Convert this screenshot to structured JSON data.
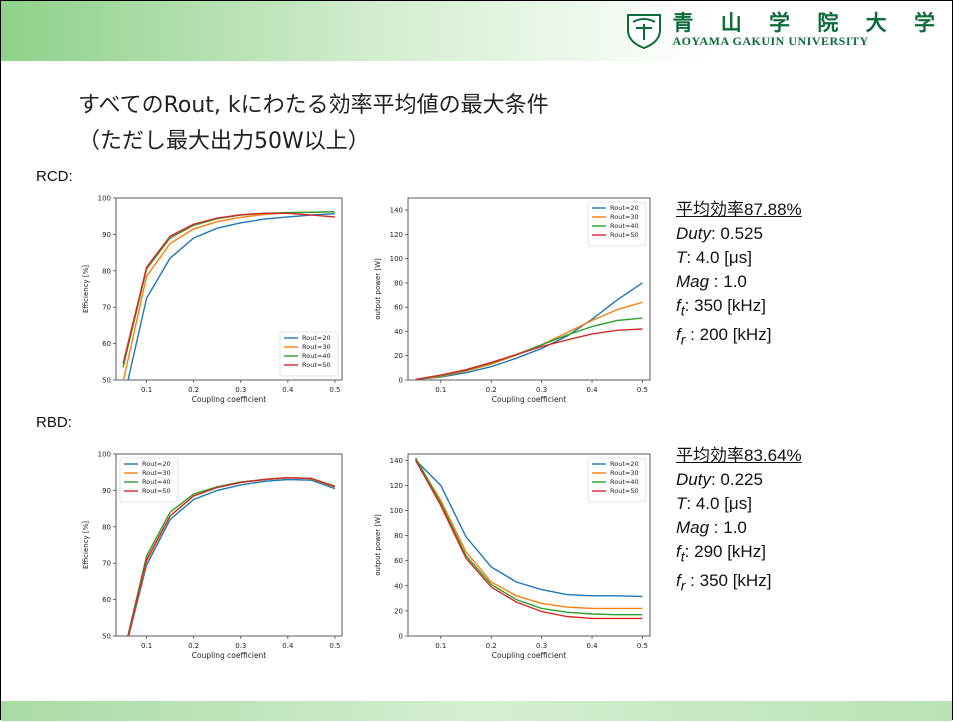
{
  "header": {
    "logo_jp": "青 山 学 院 大 学",
    "logo_en": "AOYAMA GAKUIN UNIVERSITY",
    "title_line1": "すべてのRout, kにわたる効率平均値の最大条件",
    "title_line2": "（ただし最大出力50W以上）"
  },
  "sections": [
    {
      "label": "RCD:",
      "avg_label": "平均効率87.88%",
      "duty_label": "Duty",
      "duty_value": ": 0.525",
      "t_label": "T",
      "t_value": ": 4.0 [μs]",
      "mag_label": "Mag",
      "mag_value": " : 1.0",
      "ft_label": "f",
      "ft_sub": "t",
      "ft_value": ": 350 [kHz]",
      "fr_label": "f",
      "fr_sub": "r",
      "fr_value": " : 200 [kHz]"
    },
    {
      "label": "RBD:",
      "avg_label": "平均効率83.64%",
      "duty_label": "Duty",
      "duty_value": ": 0.225",
      "t_label": "T",
      "t_value": ": 4.0 [μs]",
      "mag_label": "Mag",
      "mag_value": " : 1.0",
      "ft_label": "f",
      "ft_sub": "t",
      "ft_value": ": 290 [kHz]",
      "fr_label": "f",
      "fr_sub": "r",
      "fr_value": " : 350 [kHz]"
    }
  ],
  "colors": {
    "Rout=20": "#1f77b4",
    "Rout=30": "#ff7f0e",
    "Rout=40": "#2ca02c",
    "Rout=50": "#d62728"
  },
  "chart_data": [
    {
      "id": "rcd-eff",
      "type": "line",
      "xlabel": "Coupling coefficient",
      "ylabel": "Efficiency [%]",
      "xlim": [
        0.035,
        0.515
      ],
      "ylim": [
        50,
        100
      ],
      "xticks": [
        0.1,
        0.2,
        0.3,
        0.4,
        0.5
      ],
      "yticks": [
        50,
        60,
        70,
        80,
        90,
        100
      ],
      "legend": "lower-right",
      "x": [
        0.05,
        0.1,
        0.15,
        0.2,
        0.25,
        0.3,
        0.35,
        0.4,
        0.45,
        0.5
      ],
      "series": [
        {
          "name": "Rout=20",
          "values": [
            44,
            72.5,
            83.5,
            89,
            91.7,
            93.2,
            94.2,
            94.8,
            95.3,
            95.7
          ]
        },
        {
          "name": "Rout=30",
          "values": [
            49.5,
            78.5,
            87.5,
            91.5,
            93.5,
            94.7,
            95.5,
            95.9,
            96.1,
            96.2
          ]
        },
        {
          "name": "Rout=40",
          "values": [
            53.5,
            80.5,
            89,
            92.5,
            94.3,
            95.3,
            95.8,
            96,
            96.1,
            96.2
          ]
        },
        {
          "name": "Rout=50",
          "values": [
            54.5,
            81,
            89.5,
            92.8,
            94.5,
            95.4,
            95.8,
            95.8,
            95.3,
            94.8
          ]
        }
      ]
    },
    {
      "id": "rcd-pow",
      "type": "line",
      "xlabel": "Coupling coefficient",
      "ylabel": "output power [W]",
      "xlim": [
        0.035,
        0.515
      ],
      "ylim": [
        0,
        150
      ],
      "xticks": [
        0.1,
        0.2,
        0.3,
        0.4,
        0.5
      ],
      "yticks": [
        0,
        20,
        40,
        60,
        80,
        100,
        120,
        140
      ],
      "legend": "upper-right",
      "x": [
        0.05,
        0.1,
        0.15,
        0.2,
        0.25,
        0.3,
        0.35,
        0.4,
        0.45,
        0.5
      ],
      "series": [
        {
          "name": "Rout=20",
          "values": [
            0.5,
            2.5,
            6,
            11,
            18,
            26,
            36,
            50,
            66,
            80
          ]
        },
        {
          "name": "Rout=30",
          "values": [
            0.5,
            3,
            7.5,
            13,
            20.5,
            29,
            39,
            49,
            58,
            64
          ]
        },
        {
          "name": "Rout=40",
          "values": [
            0.5,
            3.5,
            8,
            14,
            21,
            29,
            37,
            44,
            49,
            51
          ]
        },
        {
          "name": "Rout=50",
          "values": [
            0.5,
            4,
            8.5,
            14.5,
            21,
            27.5,
            33,
            38,
            41,
            42
          ]
        }
      ]
    },
    {
      "id": "rbd-eff",
      "type": "line",
      "xlabel": "Coupling coefficient",
      "ylabel": "Efficiency [%]",
      "xlim": [
        0.035,
        0.515
      ],
      "ylim": [
        50,
        100
      ],
      "xticks": [
        0.1,
        0.2,
        0.3,
        0.4,
        0.5
      ],
      "yticks": [
        50,
        60,
        70,
        80,
        90,
        100
      ],
      "legend": "upper-left",
      "x": [
        0.05,
        0.06,
        0.1,
        0.15,
        0.2,
        0.25,
        0.3,
        0.35,
        0.4,
        0.45,
        0.5
      ],
      "series": [
        {
          "name": "Rout=20",
          "values": [
            40,
            49,
            69.5,
            82,
            87.5,
            90,
            91.5,
            92.5,
            93,
            92.8,
            90.5
          ]
        },
        {
          "name": "Rout=30",
          "values": [
            40,
            49.5,
            70.5,
            83,
            88.5,
            90.8,
            92.2,
            93,
            93.5,
            93.2,
            91
          ]
        },
        {
          "name": "Rout=40",
          "values": [
            40,
            50,
            72,
            84,
            89,
            91,
            92.3,
            93,
            93.5,
            93.3,
            91.2
          ]
        },
        {
          "name": "Rout=50",
          "values": [
            40,
            49.5,
            71,
            83,
            88.5,
            90.8,
            92.2,
            93,
            93.5,
            93.3,
            91
          ]
        }
      ]
    },
    {
      "id": "rbd-pow",
      "type": "line",
      "xlabel": "Coupling coefficient",
      "ylabel": "output power [W]",
      "xlim": [
        0.035,
        0.515
      ],
      "ylim": [
        0,
        145
      ],
      "xticks": [
        0.1,
        0.2,
        0.3,
        0.4,
        0.5
      ],
      "yticks": [
        0,
        20,
        40,
        60,
        80,
        100,
        120,
        140
      ],
      "legend": "upper-right",
      "x": [
        0.05,
        0.1,
        0.15,
        0.2,
        0.25,
        0.3,
        0.35,
        0.4,
        0.45,
        0.5
      ],
      "series": [
        {
          "name": "Rout=20",
          "values": [
            140,
            120,
            79,
            55,
            43,
            37,
            33,
            32,
            32,
            31.5
          ]
        },
        {
          "name": "Rout=30",
          "values": [
            141,
            108,
            67,
            43,
            32,
            26,
            23,
            22,
            22,
            22
          ]
        },
        {
          "name": "Rout=40",
          "values": [
            142,
            106,
            64,
            41,
            29,
            22,
            19,
            17.5,
            17,
            17
          ]
        },
        {
          "name": "Rout=50",
          "values": [
            140,
            104,
            62,
            39,
            27,
            19.5,
            15.5,
            14,
            14,
            14
          ]
        }
      ]
    }
  ]
}
